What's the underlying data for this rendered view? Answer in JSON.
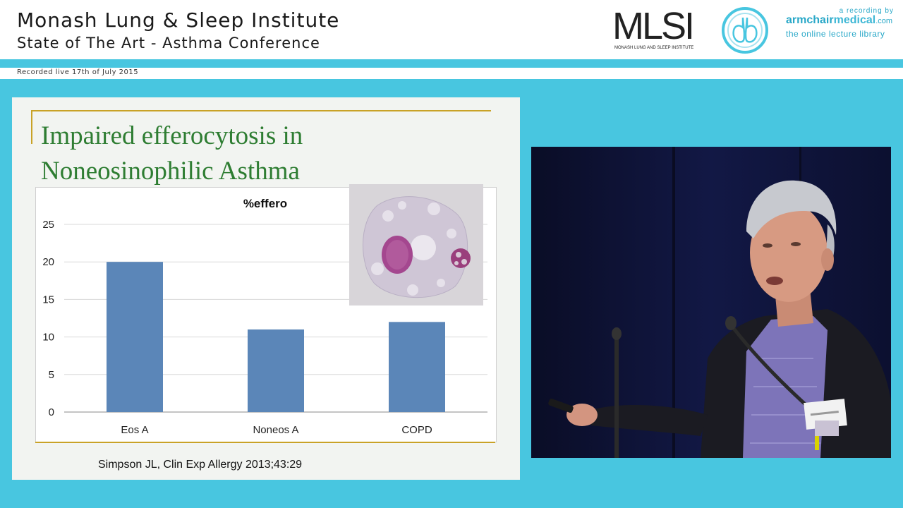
{
  "header": {
    "title": "Monash Lung & Sleep Institute",
    "subtitle": "State of The Art - Asthma Conference",
    "logo_text": "MLSI",
    "logo_caption": "MONASH LUNG AND SLEEP INSTITUTE",
    "recording_by": "a recording by",
    "brand_arm": "armchair",
    "brand_medical": "medical",
    "brand_com": ".com",
    "brand_tagline": "the online lecture library"
  },
  "recorded": "Recorded live 17th of July 2015",
  "slide": {
    "title_line1": "Impaired efferocytosis in",
    "title_line2": "Noneosinophilic Asthma",
    "citation": "Simpson JL, Clin Exp Allergy 2013;43:29"
  },
  "colors": {
    "accent": "#48c6e0",
    "bar": "#5b86b8",
    "title_green": "#2e7d32",
    "rule_gold": "#c9a227"
  },
  "chart_data": {
    "type": "bar",
    "title": "%effero",
    "categories": [
      "Eos A",
      "Noneos A",
      "COPD"
    ],
    "values": [
      20,
      11,
      12
    ],
    "ylim": [
      0,
      25
    ],
    "yticks": [
      0,
      5,
      10,
      15,
      20,
      25
    ],
    "grid": true,
    "legend": "none"
  }
}
